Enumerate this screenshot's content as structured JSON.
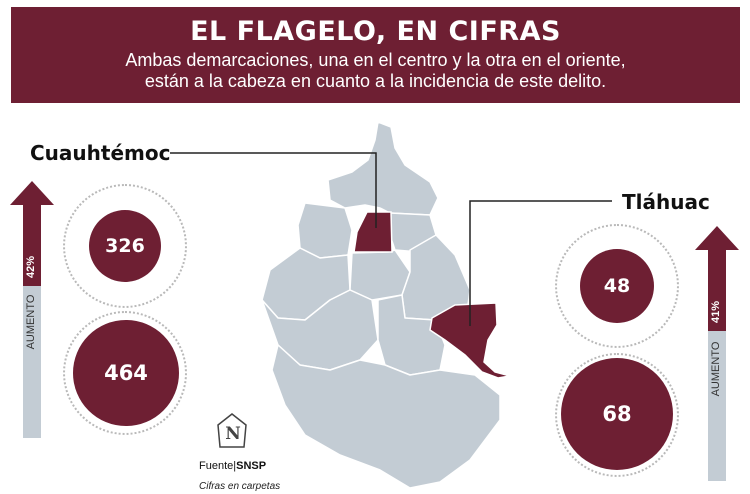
{
  "header": {
    "title": "EL FLAGELO, EN CIFRAS",
    "subtitle_line1": "Ambas demarcaciones, una en el centro y la otra en el oriente,",
    "subtitle_line2": "están a la cabeza en cuanto a la incidencia de este delito."
  },
  "cuauhtemoc": {
    "name": "Cuauhtémoc",
    "value_before": "326",
    "value_after": "464",
    "increase": "42%",
    "increase_label": "AUMENTO"
  },
  "tlahuac": {
    "name": "Tláhuac",
    "value_before": "48",
    "value_after": "68",
    "increase": "41%",
    "increase_label": "AUMENTO"
  },
  "source": {
    "prefix": "Fuente|",
    "name": "SNSP",
    "note": "Cifras en carpetas"
  },
  "logo": {
    "letter": "N"
  },
  "colors": {
    "accent": "#6e1f33",
    "map_fill": "#c3ccd4",
    "bar_fill": "#c3ccd4"
  }
}
